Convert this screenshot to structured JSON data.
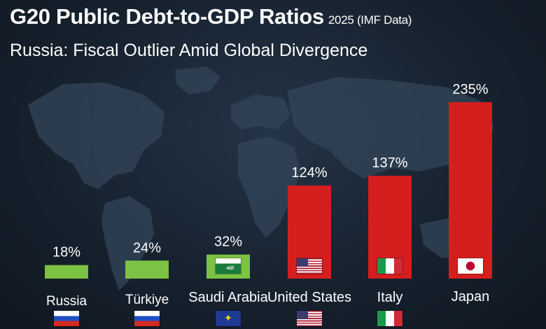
{
  "header": {
    "title": "G20 Public Debt-to-GDP Ratios",
    "title_note": "2025 (IMF Data)",
    "subtitle": "Russia: Fiscal Outlier Amid Global Divergence"
  },
  "chart_data": {
    "type": "bar",
    "title": "G20 Public Debt-to-GDP Ratios",
    "subtitle": "Russia: Fiscal Outlier Amid Global Divergence",
    "categories": [
      "Russia",
      "Türkiye",
      "Saudi Arabia",
      "United States",
      "Italy",
      "Japan"
    ],
    "values": [
      18,
      24,
      32,
      124,
      137,
      235
    ],
    "value_labels": [
      "18%",
      "24%",
      "32%",
      "124%",
      "137%",
      "235%"
    ],
    "bar_colors": [
      "#7cc243",
      "#7cc243",
      "#7cc243",
      "#d51e1e",
      "#d51e1e",
      "#d51e1e"
    ],
    "ylim": [
      0,
      235
    ],
    "grid": false,
    "xlabel": "",
    "ylabel": ""
  },
  "flags_in_bars": [
    "",
    "",
    "saudi-flag-icon",
    "usa-flag-icon",
    "italy-flag-icon",
    "japan-flag-icon"
  ],
  "flags_below": [
    "russia-flag-icon",
    "russia-flag-icon",
    "eu-flag-icon",
    "usa-flag-icon",
    "italy-flag-icon",
    ""
  ],
  "colors": {
    "background": "#17222f",
    "map": "#33455a",
    "low_debt": "#7cc243",
    "high_debt": "#d51e1e"
  }
}
